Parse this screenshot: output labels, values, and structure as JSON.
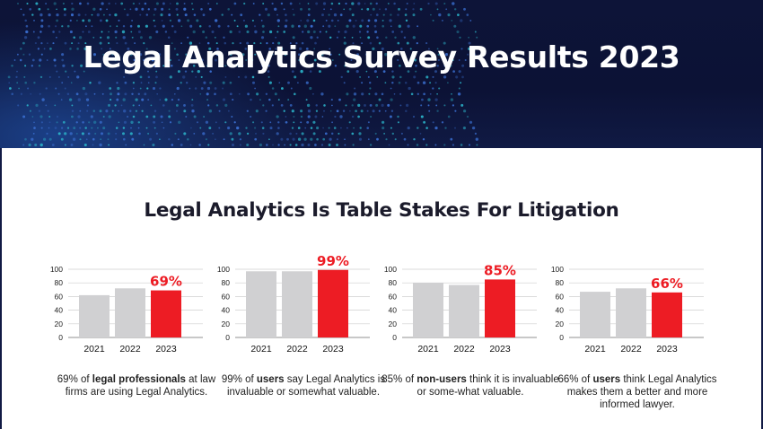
{
  "header": {
    "title": "Legal Analytics Survey Results 2023"
  },
  "section": {
    "title": "Legal Analytics Is Table Stakes For Litigation"
  },
  "colors": {
    "highlight": "#ed1c24",
    "past": "#d0d0d2",
    "header_bg": "#0d1438"
  },
  "chart_data": [
    {
      "type": "bar",
      "categories": [
        "2021",
        "2022",
        "2023"
      ],
      "values": [
        62,
        72,
        69
      ],
      "ylim": [
        0,
        100
      ],
      "yticks": [
        "0",
        "20",
        "40",
        "60",
        "80",
        "100"
      ],
      "value_label": "69%",
      "grid": true,
      "caption": {
        "lead": "69% of ",
        "bold": "legal professionals",
        "rest": " at law firms are using Legal Analytics."
      }
    },
    {
      "type": "bar",
      "categories": [
        "2021",
        "2022",
        "2023"
      ],
      "values": [
        97,
        97,
        99
      ],
      "ylim": [
        0,
        100
      ],
      "yticks": [
        "0",
        "20",
        "40",
        "60",
        "80",
        "100"
      ],
      "value_label": "99%",
      "grid": true,
      "caption": {
        "lead": "99% of ",
        "bold": "users",
        "rest": " say Legal Analytics is invaluable or somewhat valuable."
      }
    },
    {
      "type": "bar",
      "categories": [
        "2021",
        "2022",
        "2023"
      ],
      "values": [
        80,
        77,
        85
      ],
      "ylim": [
        0,
        100
      ],
      "yticks": [
        "0",
        "20",
        "40",
        "60",
        "80",
        "100"
      ],
      "value_label": "85%",
      "grid": true,
      "caption": {
        "lead": "85% of ",
        "bold": "non-users",
        "rest": " think it is invaluable or some-what valuable."
      }
    },
    {
      "type": "bar",
      "categories": [
        "2021",
        "2022",
        "2023"
      ],
      "values": [
        67,
        72,
        66
      ],
      "ylim": [
        0,
        100
      ],
      "yticks": [
        "0",
        "20",
        "40",
        "60",
        "80",
        "100"
      ],
      "value_label": "66%",
      "grid": true,
      "caption": {
        "lead": "66% of ",
        "bold": "users",
        "rest": " think Legal Analytics makes them a better and more informed lawyer."
      }
    }
  ]
}
